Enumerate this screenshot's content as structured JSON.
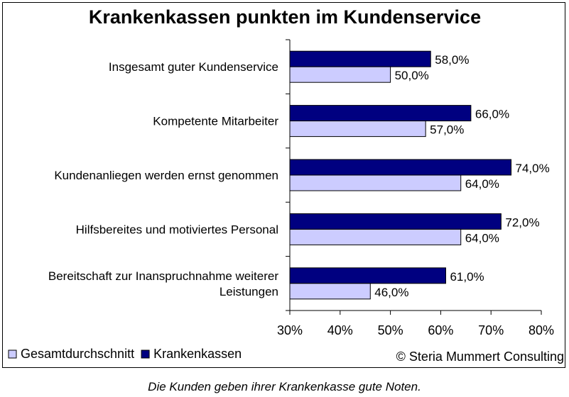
{
  "chart_data": {
    "type": "bar",
    "orientation": "horizontal",
    "title": "Krankenkassen punkten im Kundenservice",
    "categories": [
      [
        "Insgesamt guter Kundenservice"
      ],
      [
        "Kompetente Mitarbeiter"
      ],
      [
        "Kundenanliegen werden ernst genommen"
      ],
      [
        "Hilfsbereites und motiviertes Personal"
      ],
      [
        "Bereitschaft zur Inanspruchnahme weiterer",
        "Leistungen"
      ]
    ],
    "series": [
      {
        "name": "Krankenkassen",
        "color": "#000080",
        "values": [
          58.0,
          66.0,
          74.0,
          72.0,
          61.0
        ],
        "labels": [
          "58,0%",
          "66,0%",
          "74,0%",
          "72,0%",
          "61,0%"
        ]
      },
      {
        "name": "Gesamtdurchschnitt",
        "color": "#ccccff",
        "values": [
          50.0,
          57.0,
          64.0,
          64.0,
          46.0
        ],
        "labels": [
          "50,0%",
          "57,0%",
          "64,0%",
          "64,0%",
          "46,0%"
        ]
      }
    ],
    "xlim": [
      30,
      80
    ],
    "xticks": [
      30,
      40,
      50,
      60,
      70,
      80
    ],
    "xtick_labels": [
      "30%",
      "40%",
      "50%",
      "60%",
      "70%",
      "80%"
    ],
    "grid": false,
    "legend": {
      "placement": "bottom-left",
      "items": [
        {
          "name": "Gesamtdurchschnitt",
          "color": "#ccccff"
        },
        {
          "name": "Krankenkassen",
          "color": "#000080"
        }
      ]
    }
  },
  "source": "© Steria Mummert Consulting",
  "caption": "Die Kunden geben ihrer Krankenkasse gute Noten."
}
